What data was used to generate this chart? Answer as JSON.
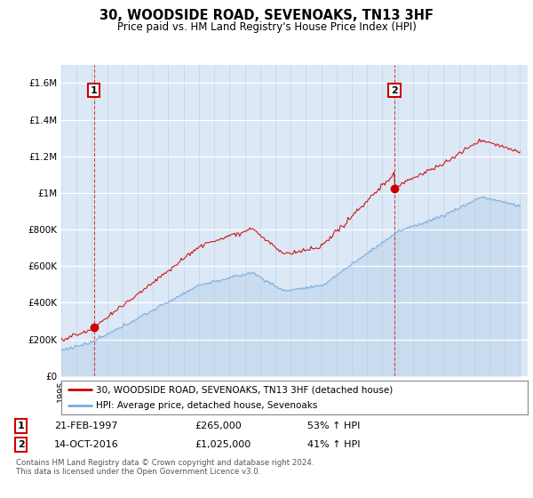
{
  "title": "30, WOODSIDE ROAD, SEVENOAKS, TN13 3HF",
  "subtitle": "Price paid vs. HM Land Registry's House Price Index (HPI)",
  "house_color": "#cc0000",
  "hpi_color": "#7aaadd",
  "background_color": "#ffffff",
  "plot_bg_color": "#dce8f5",
  "ylim": [
    0,
    1700000
  ],
  "yticks": [
    0,
    200000,
    400000,
    600000,
    800000,
    1000000,
    1200000,
    1400000,
    1600000
  ],
  "ytick_labels": [
    "£0",
    "£200K",
    "£400K",
    "£600K",
    "£800K",
    "£1M",
    "£1.2M",
    "£1.4M",
    "£1.6M"
  ],
  "sale1_year": 1997.13,
  "sale1_price": 265000,
  "sale1_label": "1",
  "sale2_year": 2016.79,
  "sale2_price": 1025000,
  "sale2_label": "2",
  "legend_house": "30, WOODSIDE ROAD, SEVENOAKS, TN13 3HF (detached house)",
  "legend_hpi": "HPI: Average price, detached house, Sevenoaks",
  "info1": "21-FEB-1997",
  "info1_price": "£265,000",
  "info1_hpi": "53% ↑ HPI",
  "info2": "14-OCT-2016",
  "info2_price": "£1,025,000",
  "info2_hpi": "41% ↑ HPI",
  "footnote": "Contains HM Land Registry data © Crown copyright and database right 2024.\nThis data is licensed under the Open Government Licence v3.0."
}
